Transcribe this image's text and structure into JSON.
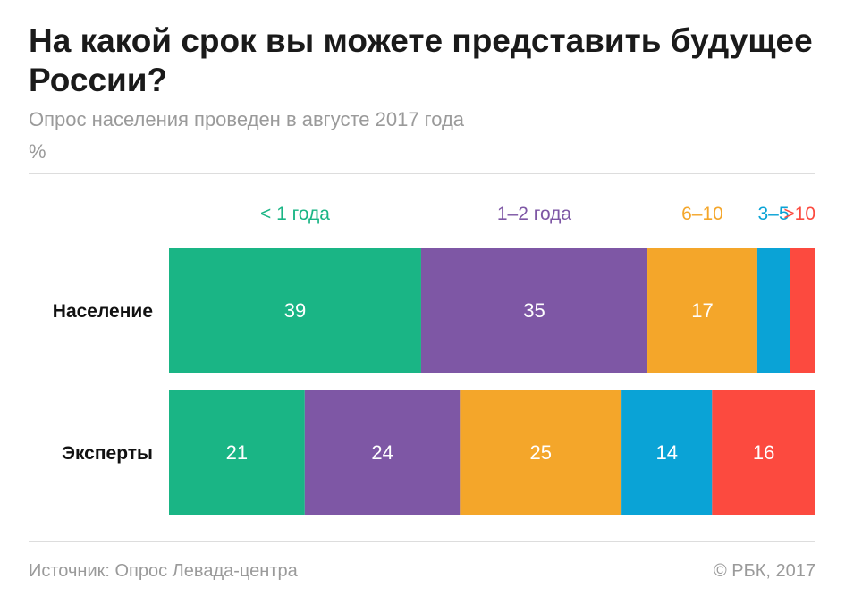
{
  "header": {
    "title": "На какой срок вы можете представить будущее России?",
    "subtitle": "Опрос населения проведен в августе 2017 года",
    "unit": "%"
  },
  "footer": {
    "source": "Источник: Опрос Левада-центра",
    "copyright": "© РБК, 2017"
  },
  "chart_data": {
    "type": "bar",
    "orientation": "horizontal",
    "stacked": true,
    "categories": [
      "Население",
      "Эксперты"
    ],
    "series": [
      {
        "name": "< 1 года",
        "color": "#1ab585",
        "values": [
          39,
          21
        ]
      },
      {
        "name": "1–2 года",
        "color": "#7e57a5",
        "values": [
          35,
          24
        ]
      },
      {
        "name": "6–10",
        "color": "#f4a62a",
        "values": [
          17,
          25
        ]
      },
      {
        "name": "3–5",
        "color": "#0aa3d6",
        "values": [
          5,
          14
        ]
      },
      {
        "name": ">10",
        "color": "#fc4a3f",
        "values": [
          4,
          16
        ]
      }
    ],
    "value_labels": [
      [
        "39",
        "21"
      ],
      [
        "35",
        "24"
      ],
      [
        "17",
        "25"
      ],
      [
        "",
        "14"
      ],
      [
        "",
        "16"
      ]
    ],
    "xlim": [
      0,
      100
    ],
    "legend_position": "top",
    "grid": false
  }
}
